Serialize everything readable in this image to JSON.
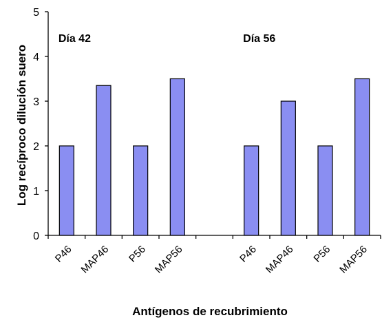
{
  "chart_data": {
    "type": "bar",
    "xlabel": "Antígenos de recubrimiento",
    "ylabel": "Log recíproco dilución suero",
    "ylim": [
      0,
      5
    ],
    "yticks": [
      0,
      1,
      2,
      3,
      4,
      5
    ],
    "groups": [
      {
        "label": "Día 42",
        "categories": [
          "P46",
          "MAP46",
          "P56",
          "MAP56"
        ],
        "values": [
          2,
          3.35,
          2,
          3.5
        ]
      },
      {
        "label": "Día 56",
        "categories": [
          "P46",
          "MAP46",
          "P56",
          "MAP56"
        ],
        "values": [
          2,
          3,
          2,
          3.5
        ]
      }
    ],
    "bar_color": "#8a8ef2",
    "grid": false,
    "legend": "none"
  }
}
